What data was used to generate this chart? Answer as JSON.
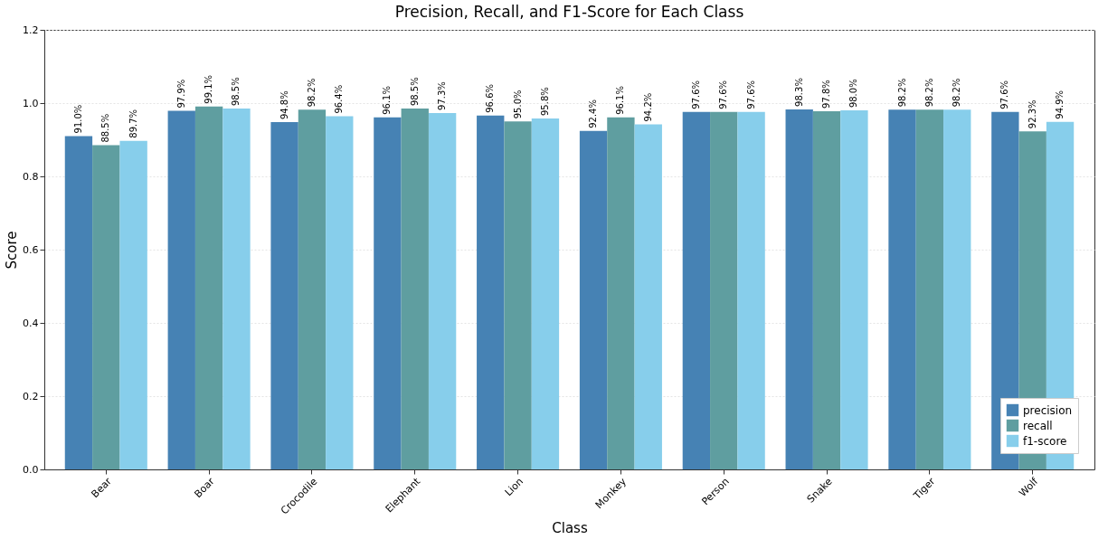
{
  "chart_data": {
    "type": "bar",
    "title": "Precision, Recall, and F1-Score for Each Class",
    "xlabel": "Class",
    "ylabel": "Score",
    "categories": [
      "Bear",
      "Boar",
      "Crocodile",
      "Elephant",
      "Lion",
      "Monkey",
      "Person",
      "Snake",
      "Tiger",
      "Wolf"
    ],
    "series": [
      {
        "name": "precision",
        "color": "#4682b4",
        "values": [
          0.91,
          0.979,
          0.948,
          0.961,
          0.966,
          0.924,
          0.976,
          0.983,
          0.982,
          0.976
        ],
        "value_labels": [
          "91.0%",
          "97.9%",
          "94.8%",
          "96.1%",
          "96.6%",
          "92.4%",
          "97.6%",
          "98.3%",
          "98.2%",
          "97.6%"
        ]
      },
      {
        "name": "recall",
        "color": "#5f9ea0",
        "values": [
          0.885,
          0.991,
          0.982,
          0.985,
          0.95,
          0.961,
          0.976,
          0.978,
          0.982,
          0.923
        ],
        "value_labels": [
          "88.5%",
          "99.1%",
          "98.2%",
          "98.5%",
          "95.0%",
          "96.1%",
          "97.6%",
          "97.8%",
          "98.2%",
          "92.3%"
        ]
      },
      {
        "name": "f1-score",
        "color": "#87ceeb",
        "values": [
          0.897,
          0.985,
          0.964,
          0.973,
          0.958,
          0.942,
          0.976,
          0.98,
          0.982,
          0.949
        ],
        "value_labels": [
          "89.7%",
          "98.5%",
          "96.4%",
          "97.3%",
          "95.8%",
          "94.2%",
          "97.6%",
          "98.0%",
          "98.2%",
          "94.9%"
        ]
      }
    ],
    "ylim": [
      0,
      1.2
    ],
    "yticks": [
      {
        "value": 0,
        "label": "0.0"
      },
      0.2,
      0.4,
      0.6,
      0.8,
      {
        "value": 1,
        "label": "1.0"
      },
      1.2
    ],
    "grid": "y",
    "legend": "bottom right"
  }
}
